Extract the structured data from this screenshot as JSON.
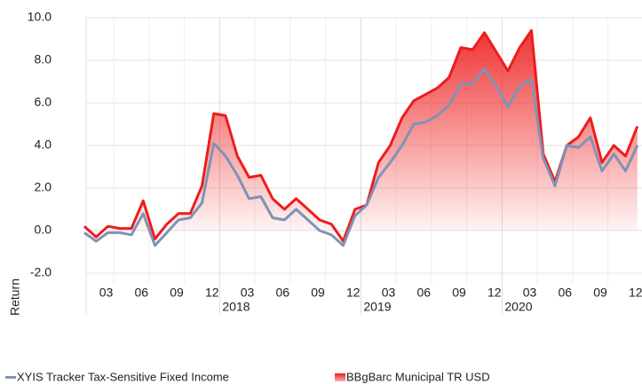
{
  "chart_data": {
    "type": "line",
    "y_label": "Return",
    "categories": [
      null,
      null,
      "03",
      null,
      null,
      "06",
      null,
      null,
      "09",
      null,
      null,
      "12",
      null,
      null,
      "03",
      null,
      null,
      "06",
      null,
      null,
      "09",
      null,
      null,
      "12",
      null,
      null,
      "03",
      null,
      null,
      "06",
      null,
      null,
      "09",
      null,
      null,
      "12",
      null,
      null,
      "03",
      null,
      null,
      "06",
      null,
      null,
      "09",
      null,
      null,
      "12"
    ],
    "groups": [
      {
        "label": "2018",
        "start": 12
      },
      {
        "label": "2019",
        "start": 24
      },
      {
        "label": "2020",
        "start": 36
      }
    ],
    "series": [
      {
        "name": "XYIS Tracker Tax-Sensitive Fixed Income",
        "color": "#7f93b5",
        "values": [
          -0.1,
          -0.5,
          -0.1,
          -0.1,
          -0.2,
          0.8,
          -0.7,
          -0.1,
          0.5,
          0.6,
          1.3,
          4.1,
          3.5,
          2.6,
          1.5,
          1.6,
          0.6,
          0.5,
          1.0,
          0.5,
          0.0,
          -0.2,
          -0.7,
          0.7,
          1.2,
          2.5,
          3.2,
          4.0,
          5.0,
          5.1,
          5.4,
          5.9,
          6.9,
          6.9,
          7.6,
          6.8,
          5.8,
          6.8,
          7.1,
          3.4,
          2.1,
          4.0,
          3.9,
          4.4,
          2.8,
          3.6,
          2.8,
          4.0
        ]
      },
      {
        "name": "BBgBarc Municipal TR USD",
        "color": "#ee1c1c",
        "fill": "area",
        "values": [
          0.2,
          -0.3,
          0.2,
          0.1,
          0.1,
          1.4,
          -0.4,
          0.3,
          0.8,
          0.8,
          2.1,
          5.5,
          5.4,
          3.5,
          2.5,
          2.6,
          1.5,
          1.0,
          1.5,
          1.0,
          0.5,
          0.3,
          -0.5,
          1.0,
          1.2,
          3.2,
          4.0,
          5.3,
          6.1,
          6.4,
          6.7,
          7.2,
          8.6,
          8.5,
          9.3,
          8.4,
          7.5,
          8.6,
          9.4,
          3.6,
          2.3,
          4.0,
          4.4,
          5.3,
          3.2,
          4.0,
          3.5,
          4.9
        ]
      }
    ],
    "ylim": [
      -2,
      10
    ],
    "yticks": [
      {
        "value": -2,
        "label": "-2.0"
      },
      {
        "value": 0,
        "label": "0.0"
      },
      {
        "value": 2,
        "label": "2.0"
      },
      {
        "value": 4,
        "label": "4.0"
      },
      {
        "value": 6,
        "label": "6.0"
      },
      {
        "value": 8,
        "label": "8.0"
      },
      {
        "value": 10,
        "label": "10.0"
      }
    ],
    "grid": true
  }
}
